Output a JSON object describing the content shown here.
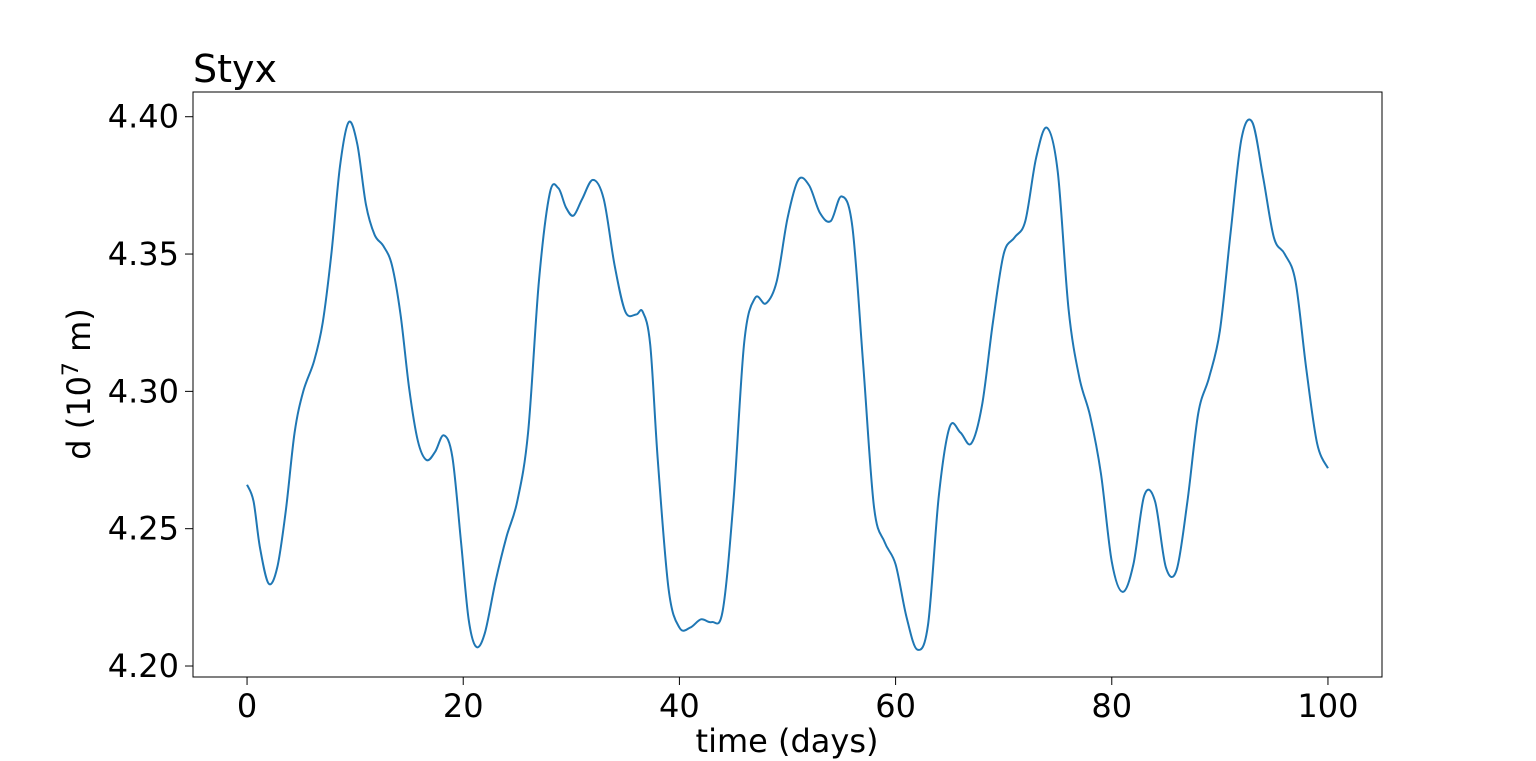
{
  "chart_data": {
    "type": "line",
    "title": "Styx",
    "xlabel": "time (days)",
    "ylabel_main": "d (10",
    "ylabel_exp": "7",
    "ylabel_tail": " m)",
    "xlim": [
      -5,
      105
    ],
    "ylim": [
      4.196,
      4.409
    ],
    "x_ticks": [
      0,
      20,
      40,
      60,
      80,
      100
    ],
    "x_tick_labels": [
      "0",
      "20",
      "40",
      "60",
      "80",
      "100"
    ],
    "y_ticks": [
      4.2,
      4.25,
      4.3,
      4.35,
      4.4
    ],
    "y_tick_labels": [
      "4.20",
      "4.25",
      "4.30",
      "4.35",
      "4.40"
    ],
    "grid": false,
    "series": [
      {
        "color": "#1f77b4",
        "points": [
          [
            0,
            4.266
          ],
          [
            0.6,
            4.26
          ],
          [
            1.2,
            4.243
          ],
          [
            2.0,
            4.23
          ],
          [
            2.8,
            4.236
          ],
          [
            3.6,
            4.257
          ],
          [
            4.4,
            4.285
          ],
          [
            5.2,
            4.3
          ],
          [
            6.2,
            4.311
          ],
          [
            7.0,
            4.325
          ],
          [
            7.8,
            4.35
          ],
          [
            8.6,
            4.382
          ],
          [
            9.4,
            4.398
          ],
          [
            10.2,
            4.39
          ],
          [
            11.0,
            4.368
          ],
          [
            11.8,
            4.357
          ],
          [
            12.6,
            4.353
          ],
          [
            13.4,
            4.346
          ],
          [
            14.2,
            4.328
          ],
          [
            15.0,
            4.301
          ],
          [
            15.8,
            4.282
          ],
          [
            16.6,
            4.275
          ],
          [
            17.4,
            4.278
          ],
          [
            18.2,
            4.284
          ],
          [
            19.0,
            4.276
          ],
          [
            19.8,
            4.245
          ],
          [
            20.5,
            4.217
          ],
          [
            21.2,
            4.207
          ],
          [
            22.0,
            4.212
          ],
          [
            23.0,
            4.231
          ],
          [
            24.0,
            4.247
          ],
          [
            25.0,
            4.26
          ],
          [
            26.0,
            4.285
          ],
          [
            27.0,
            4.34
          ],
          [
            28.0,
            4.372
          ],
          [
            28.8,
            4.374
          ],
          [
            29.5,
            4.367
          ],
          [
            30.2,
            4.364
          ],
          [
            31.0,
            4.37
          ],
          [
            32.0,
            4.377
          ],
          [
            33.0,
            4.37
          ],
          [
            34.0,
            4.346
          ],
          [
            35.0,
            4.329
          ],
          [
            36.0,
            4.328
          ],
          [
            36.6,
            4.329
          ],
          [
            37.3,
            4.317
          ],
          [
            38.0,
            4.275
          ],
          [
            39.0,
            4.228
          ],
          [
            40.0,
            4.214
          ],
          [
            41.0,
            4.214
          ],
          [
            42.0,
            4.217
          ],
          [
            43.0,
            4.216
          ],
          [
            44.0,
            4.22
          ],
          [
            45.0,
            4.26
          ],
          [
            46.0,
            4.318
          ],
          [
            47.0,
            4.334
          ],
          [
            48.0,
            4.332
          ],
          [
            49.0,
            4.34
          ],
          [
            50.0,
            4.363
          ],
          [
            51.0,
            4.377
          ],
          [
            52.0,
            4.375
          ],
          [
            53.0,
            4.365
          ],
          [
            54.0,
            4.362
          ],
          [
            55.0,
            4.371
          ],
          [
            56.0,
            4.36
          ],
          [
            57.0,
            4.31
          ],
          [
            58.0,
            4.258
          ],
          [
            59.0,
            4.245
          ],
          [
            60.0,
            4.237
          ],
          [
            61.0,
            4.218
          ],
          [
            62.0,
            4.206
          ],
          [
            63.0,
            4.215
          ],
          [
            64.0,
            4.262
          ],
          [
            65.0,
            4.287
          ],
          [
            66.0,
            4.285
          ],
          [
            67.0,
            4.281
          ],
          [
            68.0,
            4.295
          ],
          [
            69.0,
            4.325
          ],
          [
            70.0,
            4.35
          ],
          [
            71.0,
            4.356
          ],
          [
            72.0,
            4.362
          ],
          [
            73.0,
            4.385
          ],
          [
            74.0,
            4.396
          ],
          [
            75.0,
            4.38
          ],
          [
            76.0,
            4.33
          ],
          [
            77.0,
            4.305
          ],
          [
            78.0,
            4.291
          ],
          [
            79.0,
            4.27
          ],
          [
            80.0,
            4.238
          ],
          [
            81.0,
            4.227
          ],
          [
            82.0,
            4.237
          ],
          [
            83.0,
            4.262
          ],
          [
            84.0,
            4.26
          ],
          [
            85.0,
            4.236
          ],
          [
            86.0,
            4.235
          ],
          [
            87.0,
            4.26
          ],
          [
            88.0,
            4.292
          ],
          [
            89.0,
            4.305
          ],
          [
            90.0,
            4.322
          ],
          [
            91.0,
            4.358
          ],
          [
            92.0,
            4.392
          ],
          [
            93.0,
            4.398
          ],
          [
            94.0,
            4.378
          ],
          [
            95.0,
            4.356
          ],
          [
            96.0,
            4.35
          ],
          [
            97.0,
            4.34
          ],
          [
            98.0,
            4.308
          ],
          [
            99.0,
            4.281
          ],
          [
            100.0,
            4.272
          ]
        ]
      }
    ]
  }
}
